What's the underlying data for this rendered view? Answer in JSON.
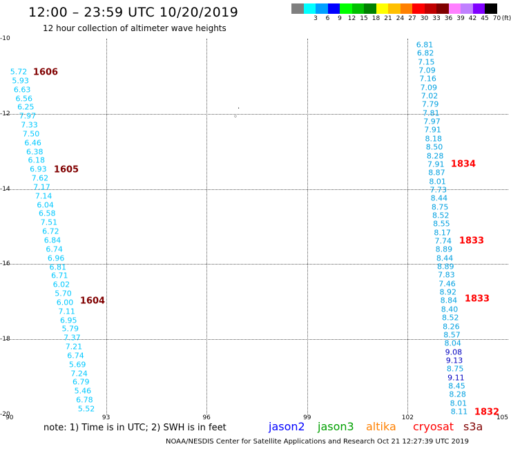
{
  "title": "12:00 – 23:59 UTC 10/20/2019",
  "subtitle": "12 hour collection of altimeter wave heights",
  "legend": {
    "unit": "(ft)",
    "swatches": [
      {
        "color": "#7f7f7f",
        "label": ""
      },
      {
        "color": "#00ffff",
        "label": "3"
      },
      {
        "color": "#00a0ff",
        "label": "6"
      },
      {
        "color": "#0000ff",
        "label": "9"
      },
      {
        "color": "#00ff00",
        "label": "12"
      },
      {
        "color": "#00c000",
        "label": "15"
      },
      {
        "color": "#008000",
        "label": "18"
      },
      {
        "color": "#ffff00",
        "label": "21"
      },
      {
        "color": "#ffc000",
        "label": "24"
      },
      {
        "color": "#ff8000",
        "label": "27"
      },
      {
        "color": "#ff0000",
        "label": "30"
      },
      {
        "color": "#c00000",
        "label": "33"
      },
      {
        "color": "#800000",
        "label": "36"
      },
      {
        "color": "#ff80ff",
        "label": "39"
      },
      {
        "color": "#c080ff",
        "label": "42"
      },
      {
        "color": "#8000ff",
        "label": "45"
      },
      {
        "color": "#000000",
        "label": "70"
      }
    ]
  },
  "axes": {
    "lat_labels": [
      "-10",
      "-12",
      "-14",
      "-16",
      "-18",
      "-20"
    ],
    "lon_labels": [
      "90",
      "93",
      "96",
      "99",
      "102",
      "105"
    ]
  },
  "tracks": [
    {
      "color": "#00c8ff",
      "values": [
        "5.72",
        "5.93",
        "6.63",
        "6.56",
        "6.25",
        "7.97",
        "7.33",
        "7.50",
        "6.46",
        "6.38",
        "6.18",
        "6.93",
        "7.62",
        "7.17",
        "7.14",
        "6.04",
        "6.58",
        "7.51",
        "6.72",
        "6.84",
        "6.74",
        "6.96",
        "6.81",
        "6.71",
        "6.02",
        "5.70",
        "6.00",
        "7.11",
        "6.95",
        "5.79",
        "7.37",
        "7.21",
        "6.74",
        "5.69",
        "7.24",
        "6.79",
        "5.46",
        "6.78",
        "5.52"
      ],
      "times": [
        {
          "label": "1606",
          "color": "#800000"
        },
        {
          "label": "1605",
          "color": "#800000"
        },
        {
          "label": "1604",
          "color": "#800000"
        }
      ]
    },
    {
      "color": "#00a0e0",
      "values": [
        "6.81",
        "6.82",
        "7.15",
        "7.09",
        "7.16",
        "7.09",
        "7.02",
        "7.79",
        "7.81",
        "7.97",
        "7.91",
        "8.18",
        "8.50",
        "8.28",
        "7.91",
        "8.87",
        "8.01",
        "7.73",
        "8.44",
        "8.75",
        "8.52",
        "8.55",
        "8.17",
        "7.74",
        "8.89",
        "8.44",
        "8.89",
        "7.83",
        "7.46",
        "8.92",
        "8.84",
        "8.40",
        "8.52",
        "8.26",
        "8.57",
        "8.04",
        "9.08",
        "9.13",
        "8.75",
        "9.11",
        "8.45",
        "8.28",
        "8.01",
        "8.11"
      ],
      "times": [
        {
          "label": "1834",
          "color": "#ff0000"
        },
        {
          "label": "1833",
          "color": "#ff0000"
        },
        {
          "label": "1833",
          "color": "#ff0000"
        },
        {
          "label": "1832",
          "color": "#ff0000"
        }
      ]
    }
  ],
  "note": "note: 1) Time is in UTC; 2) SWH is in feet",
  "satellites": [
    {
      "name": "jason2",
      "color": "#0000ff"
    },
    {
      "name": "jason3",
      "color": "#00a000"
    },
    {
      "name": "altika",
      "color": "#ff8000"
    },
    {
      "name": "cryosat",
      "color": "#ff0000"
    },
    {
      "name": "s3a",
      "color": "#800000"
    }
  ],
  "footer": "NOAA/NESDIS Center for Satellite Applications and Research    Oct 21 12:27:39 UTC 2019"
}
